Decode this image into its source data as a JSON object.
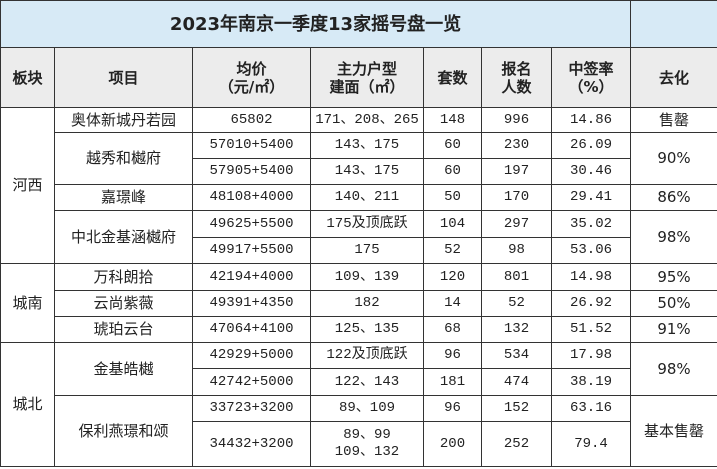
{
  "title": "2023年南京一季度13家摇号盘一览",
  "headers": [
    "板块",
    "项目",
    "均价\n（元/㎡）",
    "主力户型\n建面（㎡）",
    "套数",
    "报名\n人数",
    "中签率\n（%）",
    "去化"
  ],
  "colors": {
    "title_bg": "#d7eaf6",
    "header_bg": "#ececec",
    "border": "#333333"
  },
  "regions": [
    {
      "name": "河西",
      "projects": [
        {
          "name": "奥体新城丹若园",
          "sell_through": "售罄",
          "phases": [
            {
              "price": "65802",
              "area": "171、208、265",
              "units": "148",
              "applicants": "996",
              "rate": "14.86"
            }
          ]
        },
        {
          "name": "越秀和樾府",
          "sell_through": "90%",
          "phases": [
            {
              "price": "57010+5400",
              "area": "143、175",
              "units": "60",
              "applicants": "230",
              "rate": "26.09"
            },
            {
              "price": "57905+5400",
              "area": "143、175",
              "units": "60",
              "applicants": "197",
              "rate": "30.46"
            }
          ]
        },
        {
          "name": "嘉璟峰",
          "sell_through": "86%",
          "phases": [
            {
              "price": "48108+4000",
              "area": "140、211",
              "units": "50",
              "applicants": "170",
              "rate": "29.41"
            }
          ]
        },
        {
          "name": "中北金基涵樾府",
          "sell_through": "98%",
          "phases": [
            {
              "price": "49625+5500",
              "area": "175及顶底跃",
              "units": "104",
              "applicants": "297",
              "rate": "35.02"
            },
            {
              "price": "49917+5500",
              "area": "175",
              "units": "52",
              "applicants": "98",
              "rate": "53.06"
            }
          ]
        }
      ]
    },
    {
      "name": "城南",
      "projects": [
        {
          "name": "万科朗拾",
          "sell_through": "95%",
          "phases": [
            {
              "price": "42194+4000",
              "area": "109、139",
              "units": "120",
              "applicants": "801",
              "rate": "14.98"
            }
          ]
        },
        {
          "name": "云尚紫薇",
          "sell_through": "50%",
          "phases": [
            {
              "price": "49391+4350",
              "area": "182",
              "units": "14",
              "applicants": "52",
              "rate": "26.92"
            }
          ]
        },
        {
          "name": "琥珀云台",
          "sell_through": "91%",
          "phases": [
            {
              "price": "47064+4100",
              "area": "125、135",
              "units": "68",
              "applicants": "132",
              "rate": "51.52"
            }
          ]
        }
      ]
    },
    {
      "name": "城北",
      "projects": [
        {
          "name": "金基皓樾",
          "sell_through": "98%",
          "phases": [
            {
              "price": "42929+5000",
              "area": "122及顶底跃",
              "units": "96",
              "applicants": "534",
              "rate": "17.98"
            },
            {
              "price": "42742+5000",
              "area": "122、143",
              "units": "181",
              "applicants": "474",
              "rate": "38.19"
            }
          ]
        },
        {
          "name": "保利燕璟和颂",
          "sell_through": "基本售罄",
          "phases": [
            {
              "price": "33723+3200",
              "area": "89、109",
              "units": "96",
              "applicants": "152",
              "rate": "63.16"
            },
            {
              "price": "34432+3200",
              "area": "89、99\n109、132",
              "units": "200",
              "applicants": "252",
              "rate": "79.4"
            }
          ]
        }
      ]
    }
  ]
}
